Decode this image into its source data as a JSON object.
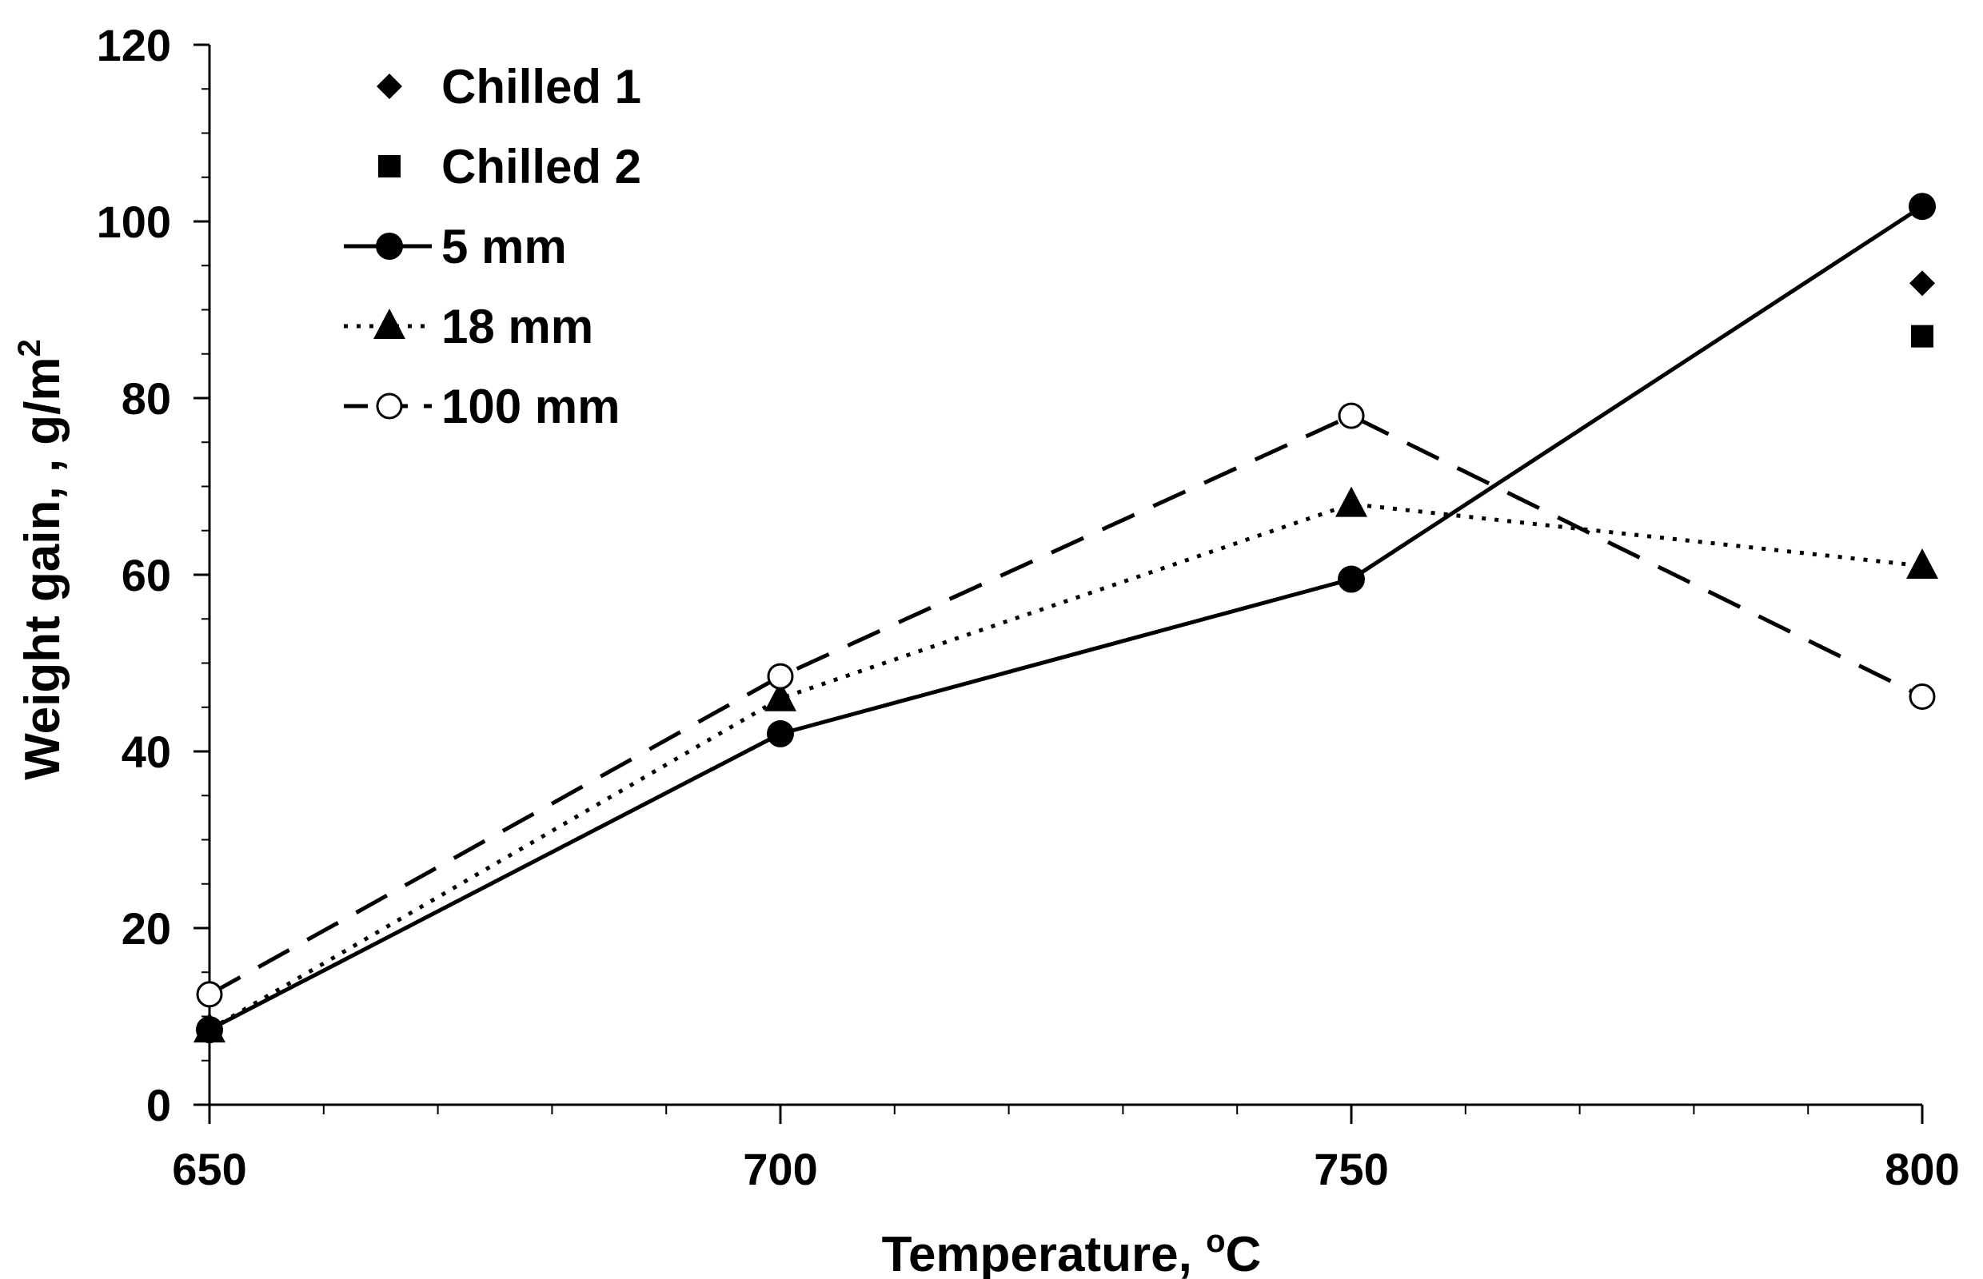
{
  "chart_data": {
    "type": "line",
    "title": "",
    "xlabel": "Temperature, ",
    "xlabel_sup": "o",
    "xlabel_unit": "C",
    "ylabel": "Weight gain, , g/m",
    "ylabel_sup": "2",
    "xlim": [
      650,
      800
    ],
    "ylim": [
      0,
      120
    ],
    "x_ticks": [
      650,
      700,
      750,
      800
    ],
    "y_ticks": [
      0,
      20,
      40,
      60,
      80,
      100,
      120
    ],
    "x_minor_step": 10,
    "y_minor_step": 5,
    "grid": false,
    "legend_position": "top-left",
    "series": [
      {
        "name": "Chilled 1",
        "marker": "diamond",
        "line": "none",
        "x": [
          800
        ],
        "y": [
          93
        ]
      },
      {
        "name": "Chilled 2",
        "marker": "square",
        "line": "none",
        "x": [
          800
        ],
        "y": [
          87
        ]
      },
      {
        "name": "5 mm",
        "marker": "circle-filled",
        "line": "solid",
        "x": [
          650,
          700,
          750,
          800
        ],
        "y": [
          8.5,
          42,
          59.5,
          101.7
        ]
      },
      {
        "name": "18 mm",
        "marker": "triangle",
        "line": "dotted",
        "x": [
          650,
          700,
          750,
          800
        ],
        "y": [
          8.5,
          46,
          68,
          61
        ]
      },
      {
        "name": "100 mm",
        "marker": "circle-open",
        "line": "dashed",
        "x": [
          650,
          700,
          750,
          800
        ],
        "y": [
          12.5,
          48.5,
          78,
          46.2
        ]
      }
    ]
  }
}
